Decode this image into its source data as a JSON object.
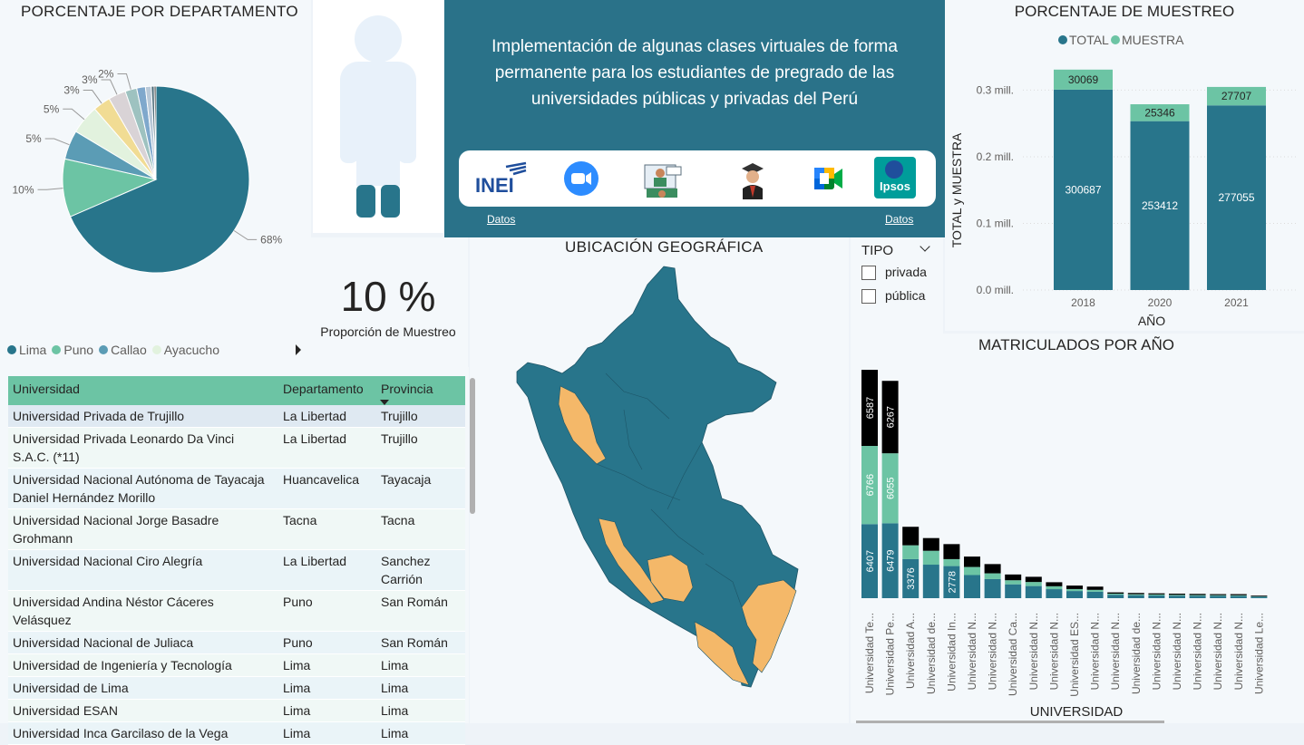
{
  "pie": {
    "title": "PORCENTAJE POR DEPARTAMENTO",
    "legend": [
      {
        "label": "Lima",
        "color": "#28758b"
      },
      {
        "label": "Puno",
        "color": "#6cc4a4"
      },
      {
        "label": "Callao",
        "color": "#5b9cb5"
      },
      {
        "label": "Ayacucho",
        "color": "#e2f2de"
      }
    ]
  },
  "proportion": {
    "value": "10 %",
    "label": "Proporción de Muestreo"
  },
  "header": {
    "text": "Implementación de algunas clases virtuales de forma permanente para los estudiantes de pregrado de las universidades públicas y privadas del Perú",
    "link_left": "Datos",
    "link_right": "Datos",
    "logo_inei": "INEI",
    "logo_ipsos": "Ipsos",
    "icons": [
      "inei-logo",
      "zoom-icon",
      "virtual-class-icon",
      "graduate-icon",
      "google-meet-icon",
      "ipsos-logo"
    ]
  },
  "map": {
    "title": "UBICACIÓN GEOGRÁFICA"
  },
  "filter": {
    "title": "TIPO",
    "options": [
      "privada",
      "pública"
    ]
  },
  "table": {
    "columns": [
      "Universidad",
      "Departamento",
      "Provincia"
    ],
    "rows": [
      [
        "Universidad Privada de Trujillo",
        "La Libertad",
        "Trujillo"
      ],
      [
        "Universidad Privada Leonardo Da Vinci S.A.C. (*11)",
        "La Libertad",
        "Trujillo"
      ],
      [
        "Universidad Nacional Autónoma de Tayacaja Daniel Hernández Morillo",
        "Huancavelica",
        "Tayacaja"
      ],
      [
        "Universidad Nacional Jorge Basadre Grohmann",
        "Tacna",
        "Tacna"
      ],
      [
        "Universidad Nacional Ciro Alegría",
        "La Libertad",
        "Sanchez Carrión"
      ],
      [
        "Universidad Andina Néstor Cáceres Velásquez",
        "Puno",
        "San Román"
      ],
      [
        "Universidad Nacional de Juliaca",
        "Puno",
        "San Román"
      ],
      [
        "Universidad de Ingeniería y Tecnología",
        "Lima",
        "Lima"
      ],
      [
        "Universidad de Lima",
        "Lima",
        "Lima"
      ],
      [
        "Universidad ESAN",
        "Lima",
        "Lima"
      ],
      [
        "Universidad Inca Garcilaso de la Vega",
        "Lima",
        "Lima"
      ]
    ]
  },
  "colors": {
    "teal": "#28758b",
    "mint": "#6cc4a4",
    "black": "#000000",
    "orange": "#f4b869"
  },
  "chart_data": [
    {
      "type": "pie",
      "title": "PORCENTAJE POR DEPARTAMENTO",
      "slices": [
        {
          "name": "Lima",
          "value": 68,
          "label": "68%",
          "color": "#28758b"
        },
        {
          "name": "Puno",
          "value": 10,
          "label": "10%",
          "color": "#6cc4a4"
        },
        {
          "name": "Callao",
          "value": 5,
          "label": "5%",
          "color": "#5b9cb5"
        },
        {
          "name": "Ayacucho",
          "value": 5,
          "label": "5%",
          "color": "#e2f2de"
        },
        {
          "name": "",
          "value": 3,
          "label": "3%",
          "color": "#f1dc94"
        },
        {
          "name": "",
          "value": 3,
          "label": "3%",
          "color": "#d9d3d6"
        },
        {
          "name": "",
          "value": 2,
          "label": "2%",
          "color": "#9ec2c0"
        },
        {
          "name": "",
          "value": 1.5,
          "label": "",
          "color": "#7fa8cc"
        },
        {
          "name": "",
          "value": 1,
          "label": "",
          "color": "#b9c9d8"
        },
        {
          "name": "",
          "value": 0.5,
          "label": "",
          "color": "#4f6d7a"
        },
        {
          "name": "",
          "value": 0.3,
          "label": "",
          "color": "#222222"
        }
      ]
    },
    {
      "type": "bar",
      "title": "PORCENTAJE DE MUESTREO",
      "categories": [
        "2018",
        "2020",
        "2021"
      ],
      "series": [
        {
          "name": "TOTAL",
          "values": [
            300687,
            253412,
            277055
          ],
          "color": "#28758b"
        },
        {
          "name": "MUESTRA",
          "values": [
            30069,
            25346,
            27707
          ],
          "color": "#6cc4a4"
        }
      ],
      "xlabel": "AÑO",
      "ylabel": "TOTAL y MUESTRA",
      "yticks": [
        "0.0 mill.",
        "0.1 mill.",
        "0.2 mill.",
        "0.3 mill."
      ],
      "ylim": [
        0,
        340000
      ],
      "legend_position": "top"
    },
    {
      "type": "bar",
      "title": "MATRICULADOS POR AÑO",
      "xlabel": "UNIVERSIDAD",
      "categories": [
        "Universidad Te...",
        "Universidad Pe...",
        "Universidad A...",
        "Universidad de...",
        "Universidad In...",
        "Universidad N...",
        "Universidad N...",
        "Universidad Ca...",
        "Universidad N...",
        "Universidad N...",
        "Universidad ES...",
        "Universidad N...",
        "Universidad N...",
        "Universidad de...",
        "Universidad N...",
        "Universidad N...",
        "Universidad N...",
        "Universidad N...",
        "Universidad N...",
        "Universidad Le..."
      ],
      "series": [
        {
          "name": "",
          "color": "#28758b",
          "values": [
            6407,
            6479,
            3376,
            2900,
            2778,
            2000,
            1650,
            1200,
            1050,
            780,
            620,
            560,
            300,
            260,
            240,
            220,
            210,
            200,
            190,
            120
          ]
        },
        {
          "name": "",
          "color": "#6cc4a4",
          "values": [
            6766,
            6055,
            1200,
            1200,
            600,
            700,
            500,
            350,
            350,
            250,
            170,
            160,
            90,
            80,
            80,
            70,
            60,
            60,
            60,
            30
          ]
        },
        {
          "name": "",
          "color": "#000000",
          "values": [
            6587,
            6267,
            1600,
            1100,
            1300,
            900,
            800,
            500,
            450,
            350,
            300,
            280,
            110,
            110,
            100,
            100,
            100,
            90,
            100,
            70
          ]
        }
      ],
      "data_labels": [
        {
          "series": 0,
          "index": 0,
          "text": "6407"
        },
        {
          "series": 0,
          "index": 1,
          "text": "6479"
        },
        {
          "series": 0,
          "index": 2,
          "text": "3376"
        },
        {
          "series": 0,
          "index": 4,
          "text": "2778"
        },
        {
          "series": 1,
          "index": 0,
          "text": "6766"
        },
        {
          "series": 1,
          "index": 1,
          "text": "6055"
        },
        {
          "series": 2,
          "index": 0,
          "text": "6587"
        },
        {
          "series": 2,
          "index": 1,
          "text": "6267"
        }
      ]
    }
  ]
}
